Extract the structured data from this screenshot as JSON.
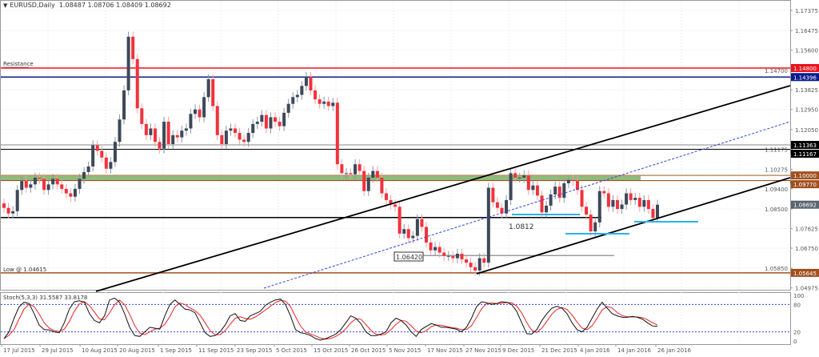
{
  "header": {
    "symbol": "EURUSD,Daily",
    "ohlc": "1.08487 1.08706 1.08409 1.08692",
    "menu_icon": "triangle-down-icon"
  },
  "colors": {
    "bull": "#3d4858",
    "bear": "#f2323c",
    "resistance": "#e8141e",
    "navy": "#0b1a8c",
    "brown": "#a0501e",
    "zone": "#8fbc7a",
    "cyan": "#2ab4e8",
    "dotted": "#3344dd",
    "stoch_main": "#111111",
    "stoch_signal": "#ee2222"
  },
  "annotations": {
    "resistance_label": "Resistance",
    "low_label": "Low @ 1.04615",
    "level_1_label": "1.0812",
    "level_2_label": "1.06420"
  },
  "levels": {
    "resistance": 1.148,
    "navy": 1.14396,
    "upper_grey": 1.11363,
    "upper_black": 1.11167,
    "zone_top": 1.1,
    "zone_bottom": 1.0977,
    "support": 1.0812,
    "mid": 1.0642,
    "low": 1.05645
  },
  "price_axis": {
    "ticks": [
      "1.17375",
      "1.16475",
      "1.15600",
      "1.14700",
      "1.13825",
      "1.12950",
      "1.12050",
      "1.11175",
      "1.10275",
      "1.09400",
      "1.08500",
      "1.07625",
      "1.06750",
      "1.05850",
      "1.04975"
    ],
    "tags": [
      {
        "text": "1.14800",
        "color": "#e8141e"
      },
      {
        "text": "1.14396",
        "color": "#0b1a8c"
      },
      {
        "text": "1.11363",
        "color": "#000000"
      },
      {
        "text": "1.11167",
        "color": "#000000"
      },
      {
        "text": "1.10000",
        "color": "#a0501e"
      },
      {
        "text": "1.09770",
        "color": "#a0501e"
      },
      {
        "text": "1.08692",
        "color": "#5a6470"
      },
      {
        "text": "1.05645",
        "color": "#a0501e"
      }
    ]
  },
  "stoch": {
    "label": "Stoch(5,3,3) 31.5587 33.8178",
    "ticks": [
      "100",
      "80",
      "20",
      "0"
    ],
    "k": [
      5,
      20,
      50,
      75,
      85,
      82,
      60,
      35,
      25,
      24,
      20,
      18,
      40,
      70,
      86,
      88,
      85,
      60,
      45,
      40,
      55,
      90,
      94,
      85,
      60,
      30,
      12,
      10,
      20,
      30,
      28,
      26,
      55,
      80,
      90,
      80,
      70,
      68,
      62,
      40,
      18,
      10,
      12,
      20,
      35,
      55,
      60,
      45,
      43,
      55,
      60,
      65,
      78,
      85,
      90,
      92,
      80,
      55,
      25,
      18,
      16,
      12,
      5,
      2,
      5,
      10,
      15,
      25,
      40,
      55,
      50,
      38,
      20,
      12,
      12,
      15,
      20,
      40,
      50,
      45,
      35,
      20,
      10,
      25,
      32,
      38,
      35,
      30,
      30,
      28,
      26,
      20,
      30,
      50,
      75,
      86,
      84,
      80,
      82,
      86,
      85,
      80,
      65,
      40,
      16,
      15,
      25,
      45,
      60,
      72,
      76,
      72,
      60,
      40,
      25,
      20,
      30,
      50,
      70,
      85,
      72,
      60,
      55,
      52,
      52,
      54,
      52,
      48,
      40,
      33,
      32
    ],
    "overbought": 80,
    "oversold": 20
  },
  "time_axis": {
    "labels": [
      "17 Jul 2015",
      "29 Jul 2015",
      "10 Aug 2015",
      "20 Aug 2015",
      "1 Sep 2015",
      "11 Sep 2015",
      "23 Sep 2015",
      "5 Oct 2015",
      "15 Oct 2015",
      "26 Oct 2015",
      "5 Nov 2015",
      "17 Nov 2015",
      "27 Nov 2015",
      "9 Dec 2015",
      "21 Dec 2015",
      "4 Jan 2016",
      "14 Jan 2016",
      "26 Jan 2016"
    ]
  },
  "chart_data": {
    "type": "candlestick",
    "ylim": [
      1.0489,
      1.1784
    ],
    "first_open": 1.0875,
    "closes": [
      1.0855,
      1.083,
      1.084,
      1.0935,
      1.0975,
      1.0945,
      1.096,
      1.099,
      1.0985,
      1.0935,
      1.096,
      1.0985,
      1.096,
      1.094,
      1.092,
      1.0905,
      1.094,
      1.0985,
      1.1015,
      1.104,
      1.1135,
      1.111,
      1.108,
      1.103,
      1.106,
      1.115,
      1.125,
      1.138,
      1.162,
      1.152,
      1.13,
      1.123,
      1.118,
      1.121,
      1.115,
      1.112,
      1.124,
      1.114,
      1.118,
      1.117,
      1.12,
      1.121,
      1.1275,
      1.1295,
      1.126,
      1.135,
      1.143,
      1.131,
      1.118,
      1.114,
      1.12,
      1.121,
      1.119,
      1.116,
      1.115,
      1.119,
      1.123,
      1.124,
      1.127,
      1.121,
      1.126,
      1.124,
      1.122,
      1.128,
      1.132,
      1.135,
      1.136,
      1.14,
      1.144,
      1.138,
      1.134,
      1.132,
      1.133,
      1.131,
      1.1325,
      1.105,
      1.101,
      1.101,
      1.1005,
      1.105,
      1.102,
      1.093,
      1.099,
      1.102,
      1.099,
      1.092,
      1.089,
      1.087,
      1.086,
      1.074,
      1.076,
      1.072,
      1.073,
      1.0805,
      1.077,
      1.07,
      1.0665,
      1.068,
      1.0655,
      1.064,
      1.064,
      1.063,
      1.065,
      1.0625,
      1.061,
      1.059,
      1.0575,
      1.063,
      1.061,
      1.0945,
      1.088,
      1.0855,
      1.083,
      1.089,
      1.101,
      1.099,
      1.099,
      1.1,
      1.0935,
      1.0955,
      1.091,
      1.0835,
      1.0865,
      1.0915,
      1.095,
      1.09,
      1.0965,
      1.098,
      1.0975,
      1.0935,
      1.086,
      1.0825,
      1.075,
      1.079,
      1.093,
      1.092,
      1.086,
      1.089,
      1.085,
      1.087,
      1.092,
      1.089,
      1.09,
      1.086,
      1.089,
      1.085,
      1.081,
      1.0869
    ]
  }
}
